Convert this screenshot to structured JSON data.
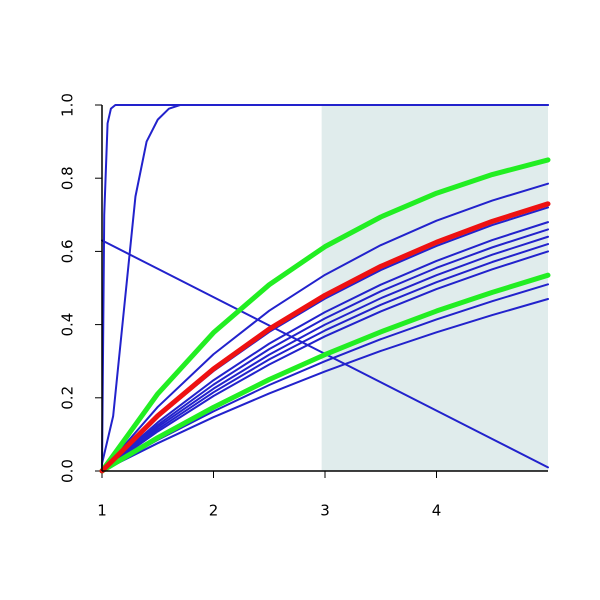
{
  "chart_data": {
    "type": "line",
    "x": [
      1,
      1.5,
      2,
      2.5,
      3,
      3.5,
      4,
      4.5,
      5
    ],
    "xlim": [
      1,
      5
    ],
    "ylim": [
      0,
      1
    ],
    "xticks": [
      1,
      2,
      3,
      4
    ],
    "yticks": [
      {
        "value": 0,
        "label": "0.0"
      },
      0.2,
      0.4,
      0.6,
      0.8,
      {
        "value": 1,
        "label": "1.0"
      }
    ],
    "shade": [
      2.97,
      5
    ],
    "shade_color": "#e0ecec",
    "series": [
      {
        "color": "#2222cc",
        "width": 2,
        "x": [
          1,
          1.02,
          1.05,
          1.08,
          1.12,
          5
        ],
        "values": [
          0,
          0.7,
          0.95,
          0.99,
          1,
          1
        ]
      },
      {
        "color": "#2222cc",
        "width": 2,
        "x": [
          1,
          1.1,
          1.2,
          1.3,
          1.4,
          1.5,
          1.6,
          1.7,
          2,
          5
        ],
        "values": [
          0.02,
          0.15,
          0.45,
          0.75,
          0.9,
          0.96,
          0.99,
          1,
          1,
          1
        ]
      },
      {
        "color": "#2222cc",
        "width": 2,
        "values": [
          0.63,
          0.5525,
          0.475,
          0.3975,
          0.32,
          0.2425,
          0.165,
          0.0875,
          0.01
        ]
      },
      {
        "color": "#2222cc",
        "width": 2,
        "values": [
          0,
          0.175,
          0.319,
          0.438,
          0.536,
          0.617,
          0.684,
          0.739,
          0.785
        ]
      },
      {
        "color": "#2222cc",
        "width": 2,
        "values": [
          0,
          0.147,
          0.273,
          0.38,
          0.471,
          0.549,
          0.615,
          0.672,
          0.72
        ]
      },
      {
        "color": "#2222cc",
        "width": 2,
        "values": [
          0,
          0.133,
          0.248,
          0.348,
          0.434,
          0.509,
          0.574,
          0.631,
          0.68
        ]
      },
      {
        "color": "#2222cc",
        "width": 2,
        "values": [
          0,
          0.126,
          0.236,
          0.333,
          0.417,
          0.491,
          0.555,
          0.611,
          0.66
        ]
      },
      {
        "color": "#2222cc",
        "width": 2,
        "values": [
          0,
          0.12,
          0.225,
          0.318,
          0.4,
          0.472,
          0.535,
          0.591,
          0.64
        ]
      },
      {
        "color": "#2222cc",
        "width": 2,
        "values": [
          0,
          0.114,
          0.215,
          0.305,
          0.384,
          0.454,
          0.516,
          0.571,
          0.62
        ]
      },
      {
        "color": "#2222cc",
        "width": 2,
        "values": [
          0,
          0.108,
          0.205,
          0.291,
          0.368,
          0.436,
          0.497,
          0.551,
          0.6
        ]
      },
      {
        "color": "#2222cc",
        "width": 2,
        "values": [
          0,
          0.085,
          0.163,
          0.235,
          0.3,
          0.36,
          0.414,
          0.464,
          0.51
        ]
      },
      {
        "color": "#2222cc",
        "width": 2,
        "values": [
          0,
          0.076,
          0.147,
          0.212,
          0.272,
          0.328,
          0.379,
          0.426,
          0.47
        ]
      },
      {
        "color": "#22ee22",
        "width": 5,
        "values": [
          0,
          0.211,
          0.378,
          0.509,
          0.613,
          0.694,
          0.759,
          0.81,
          0.85
        ]
      },
      {
        "color": "#22ee22",
        "width": 5,
        "values": [
          0,
          0.091,
          0.174,
          0.25,
          0.318,
          0.38,
          0.437,
          0.488,
          0.535
        ]
      },
      {
        "color": "#ee1111",
        "width": 5,
        "values": [
          0,
          0.151,
          0.279,
          0.388,
          0.48,
          0.559,
          0.625,
          0.682,
          0.73
        ]
      }
    ]
  }
}
